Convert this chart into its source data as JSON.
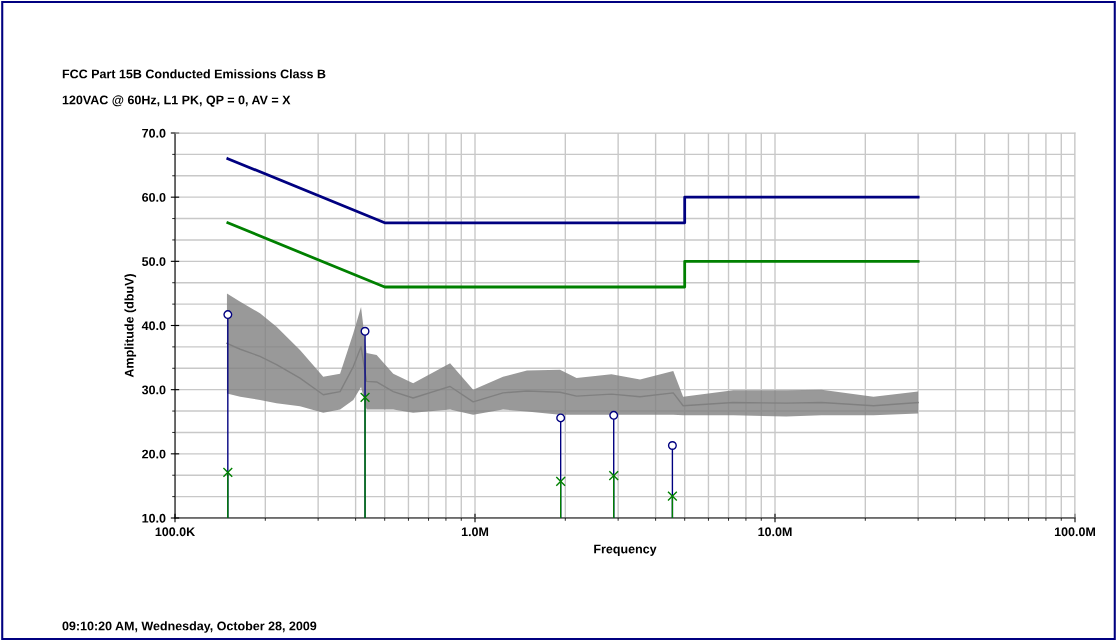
{
  "chart_data": {
    "type": "line",
    "title": "FCC Part 15B Conducted Emissions Class B",
    "subtitle": "120VAC @ 60Hz, L1 PK, QP = 0, AV = X",
    "xlabel": "Frequency",
    "ylabel": "Amplitude (dbuV)",
    "annotations": [
      "09:10:20 AM, Wednesday, October 28, 2009"
    ],
    "log": "x",
    "grid": true,
    "legend": false,
    "marker": "none",
    "xlim": [
      100000,
      100000000
    ],
    "xticks": [
      {
        "value": 100000,
        "label": "100.0K"
      },
      {
        "value": 1000000,
        "label": "1.0M"
      },
      {
        "value": 10000000,
        "label": "10.0M"
      },
      {
        "value": 100000000,
        "label": "100.0M"
      }
    ],
    "ylim": [
      10,
      70
    ],
    "yticks": [
      {
        "value": 10,
        "label": "10.0"
      },
      {
        "value": 20,
        "label": "20.0"
      },
      {
        "value": 30,
        "label": "30.0"
      },
      {
        "value": 40,
        "label": "40.0"
      },
      {
        "value": 50,
        "label": "50.0"
      },
      {
        "value": 60,
        "label": "60.0"
      },
      {
        "value": 70,
        "label": "70.0"
      }
    ],
    "series": [
      {
        "color": "#808080",
        "x": [
          149000,
          165000,
          192000,
          218000,
          261000,
          312000,
          355000,
          393000,
          417000,
          435000,
          470000,
          534000,
          622000,
          826000,
          986000,
          1240000,
          1490000,
          1920000,
          2180000,
          2850000,
          3550000,
          4580000,
          4940000,
          7260000,
          10900000,
          14300000,
          21300000,
          30000000
        ],
        "values": [
          37.2,
          36.3,
          35.2,
          33.9,
          31.8,
          29.2,
          29.7,
          33.6,
          36.7,
          31.3,
          31.2,
          29.7,
          28.7,
          30.5,
          28.1,
          29.5,
          29.8,
          29.6,
          29.0,
          29.3,
          28.9,
          29.5,
          27.5,
          28.0,
          27.9,
          28.0,
          27.5,
          28.0
        ],
        "upper": [
          45.0,
          43.7,
          41.9,
          39.8,
          36.2,
          32.0,
          32.5,
          38.8,
          42.9,
          35.7,
          35.4,
          32.5,
          31.0,
          34.1,
          30.0,
          32.0,
          33.0,
          33.1,
          31.8,
          32.4,
          31.6,
          32.9,
          28.9,
          29.9,
          29.9,
          30.0,
          28.9,
          29.7
        ],
        "lower": [
          29.4,
          28.9,
          28.4,
          27.9,
          27.4,
          26.4,
          26.9,
          28.4,
          30.4,
          26.9,
          26.9,
          26.9,
          26.4,
          26.9,
          26.1,
          26.9,
          26.6,
          26.1,
          26.1,
          26.1,
          26.1,
          26.1,
          26.0,
          26.0,
          25.8,
          26.0,
          26.0,
          26.3
        ]
      },
      {
        "color": "#000080",
        "x": [
          150000,
          500000,
          5000000,
          5000000,
          30000000
        ],
        "values": [
          66,
          56,
          56,
          60,
          60
        ]
      },
      {
        "color": "#008000",
        "x": [
          150000,
          500000,
          5000000,
          5000000,
          30000000
        ],
        "values": [
          56,
          46,
          46,
          50,
          50
        ]
      },
      {
        "type": "lollipop",
        "color": "#000080",
        "marker": "circle",
        "x": [
          150000,
          430000,
          1930000,
          2900000,
          4550000
        ],
        "values": [
          41.7,
          39.1,
          25.6,
          26.0,
          21.3
        ]
      },
      {
        "type": "lollipop",
        "color": "#008000",
        "marker": "cross",
        "x": [
          150000,
          430000,
          1930000,
          2900000,
          4550000
        ],
        "values": [
          17.1,
          28.8,
          15.7,
          16.6,
          13.4
        ]
      }
    ]
  }
}
